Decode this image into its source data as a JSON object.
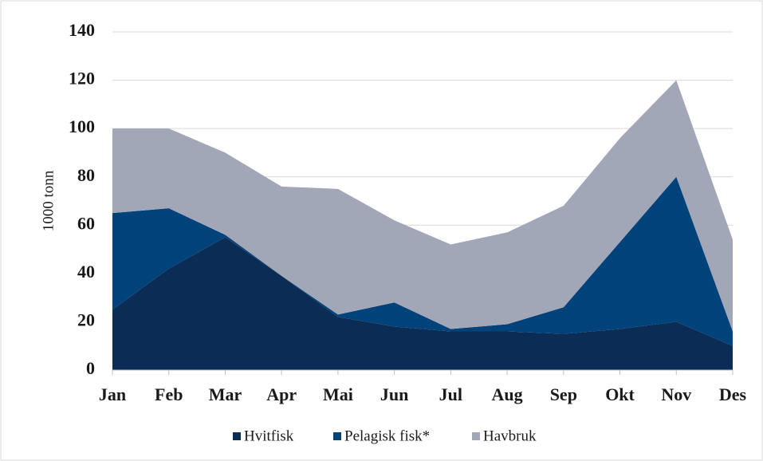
{
  "chart_data": {
    "type": "stacked_area",
    "y_label": "1000 tonn",
    "categories": [
      "Jan",
      "Feb",
      "Mar",
      "Apr",
      "Mai",
      "Jun",
      "Jul",
      "Aug",
      "Sep",
      "Okt",
      "Nov",
      "Des"
    ],
    "series": [
      {
        "name": "Hvitfisk",
        "color": "#0b2d55",
        "values": [
          25,
          42,
          55,
          39,
          22,
          18,
          16,
          16,
          15,
          17,
          20,
          10
        ]
      },
      {
        "name": "Pelagisk fisk*",
        "color": "#00427a",
        "values": [
          40,
          25,
          1,
          0,
          1,
          10,
          1,
          3,
          11,
          36,
          60,
          6
        ]
      },
      {
        "name": "Havbruk",
        "color": "#a2a7b8",
        "values": [
          35,
          33,
          34,
          37,
          52,
          34,
          35,
          38,
          42,
          43,
          40,
          38
        ]
      }
    ],
    "ylim": [
      0,
      140
    ],
    "yticks": [
      0,
      20,
      40,
      60,
      80,
      100,
      120,
      140
    ],
    "grid": true,
    "legend": "bottom"
  }
}
